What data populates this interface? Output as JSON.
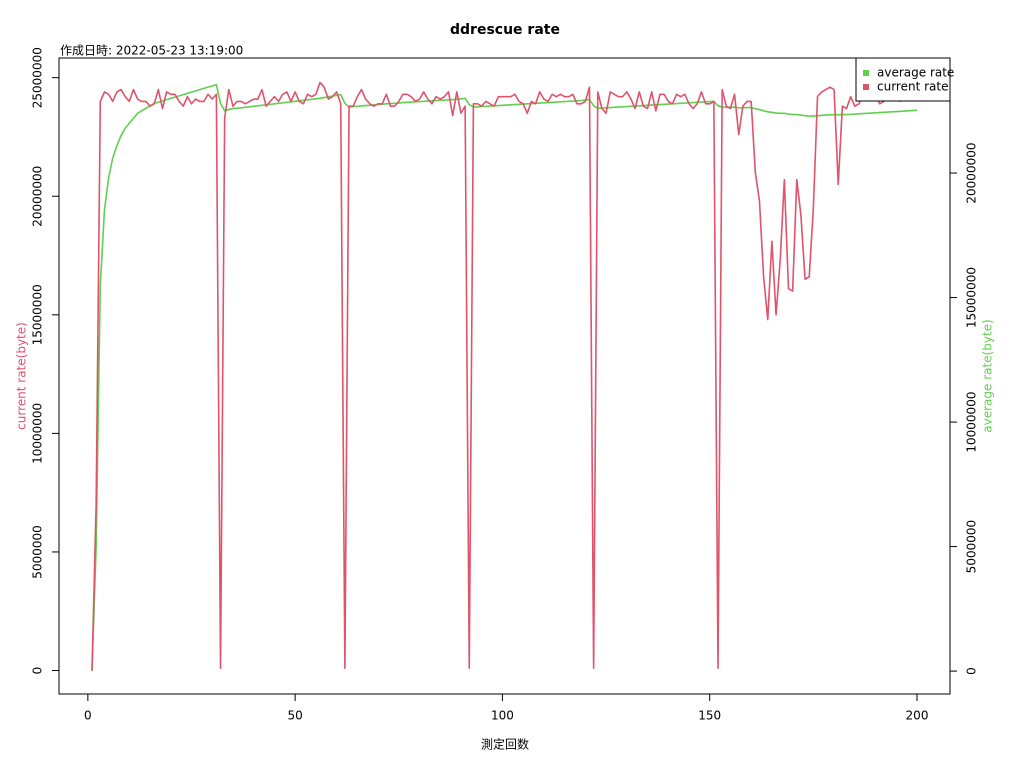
{
  "chart_data": {
    "type": "line",
    "title": "ddrescue rate",
    "subtitle": "作成日時: 2022-05-23 13:19:00",
    "x_label": "測定回数",
    "y_label": "current rate(byte)",
    "y2_label": "average rate(byte)",
    "legend": "topright",
    "xlim": [
      -6.96,
      207.96
    ],
    "xticks": [
      0,
      50,
      100,
      150,
      200
    ],
    "ylim": [
      -990000,
      25830000
    ],
    "yticks": [
      0,
      5000000,
      10000000,
      15000000,
      20000000,
      25000000
    ],
    "y2lim": [
      -920000,
      24620000
    ],
    "y2ticks": [
      0,
      5000000,
      10000000,
      15000000,
      20000000
    ],
    "x": [
      1,
      2,
      3,
      4,
      5,
      6,
      7,
      8,
      9,
      10,
      11,
      12,
      13,
      14,
      15,
      16,
      17,
      18,
      19,
      20,
      21,
      22,
      23,
      24,
      25,
      26,
      27,
      28,
      29,
      30,
      31,
      32,
      33,
      34,
      35,
      36,
      37,
      38,
      39,
      40,
      41,
      42,
      43,
      44,
      45,
      46,
      47,
      48,
      49,
      50,
      51,
      52,
      53,
      54,
      55,
      56,
      57,
      58,
      59,
      60,
      61,
      62,
      63,
      64,
      65,
      66,
      67,
      68,
      69,
      70,
      71,
      72,
      73,
      74,
      75,
      76,
      77,
      78,
      79,
      80,
      81,
      82,
      83,
      84,
      85,
      86,
      87,
      88,
      89,
      90,
      91,
      92,
      93,
      94,
      95,
      96,
      97,
      98,
      99,
      100,
      101,
      102,
      103,
      104,
      105,
      106,
      107,
      108,
      109,
      110,
      111,
      112,
      113,
      114,
      115,
      116,
      117,
      118,
      119,
      120,
      121,
      122,
      123,
      124,
      125,
      126,
      127,
      128,
      129,
      130,
      131,
      132,
      133,
      134,
      135,
      136,
      137,
      138,
      139,
      140,
      141,
      142,
      143,
      144,
      145,
      146,
      147,
      148,
      149,
      150,
      151,
      152,
      153,
      154,
      155,
      156,
      157,
      158,
      159,
      160,
      161,
      162,
      163,
      164,
      165,
      166,
      167,
      168,
      169,
      170,
      171,
      172,
      173,
      174,
      175,
      176,
      177,
      178,
      179,
      180,
      181,
      182,
      183,
      184,
      185,
      186,
      187,
      188,
      189,
      190,
      191,
      192,
      193,
      194,
      195,
      196,
      197,
      198,
      199,
      200
    ],
    "series": [
      {
        "name": "average rate",
        "color": "#61D04F",
        "axis": "y2",
        "values": [
          0,
          5000000,
          15500000,
          18500000,
          19800000,
          20600000,
          21100000,
          21500000,
          21800000,
          22000000,
          22200000,
          22400000,
          22500000,
          22600000,
          22700000,
          22800000,
          22850000,
          22900000,
          22950000,
          23000000,
          23050000,
          23100000,
          23150000,
          23200000,
          23250000,
          23300000,
          23350000,
          23400000,
          23450000,
          23500000,
          23550000,
          22800000,
          22500000,
          22550000,
          22600000,
          22600000,
          22620000,
          22640000,
          22660000,
          22680000,
          22700000,
          22720000,
          22740000,
          22760000,
          22780000,
          22800000,
          22820000,
          22840000,
          22860000,
          22880000,
          22900000,
          22920000,
          22940000,
          22960000,
          22980000,
          23000000,
          23030000,
          23060000,
          23090000,
          23120000,
          23150000,
          22800000,
          22650000,
          22670000,
          22680000,
          22700000,
          22710000,
          22720000,
          22740000,
          22750000,
          22760000,
          22780000,
          22790000,
          22800000,
          22810000,
          22830000,
          22840000,
          22850000,
          22860000,
          22870000,
          22880000,
          22890000,
          22900000,
          22910000,
          22920000,
          22930000,
          22940000,
          22950000,
          22960000,
          22980000,
          23000000,
          22750000,
          22650000,
          22660000,
          22670000,
          22680000,
          22690000,
          22700000,
          22710000,
          22720000,
          22730000,
          22740000,
          22750000,
          22760000,
          22770000,
          22780000,
          22790000,
          22800000,
          22810000,
          22820000,
          22830000,
          22840000,
          22850000,
          22860000,
          22870000,
          22880000,
          22890000,
          22900000,
          22910000,
          22930000,
          22950000,
          22700000,
          22600000,
          22610000,
          22620000,
          22630000,
          22640000,
          22650000,
          22660000,
          22670000,
          22680000,
          22690000,
          22700000,
          22710000,
          22720000,
          22730000,
          22740000,
          22750000,
          22760000,
          22770000,
          22780000,
          22790000,
          22800000,
          22810000,
          22820000,
          22830000,
          22840000,
          22850000,
          22860000,
          22870000,
          22880000,
          22700000,
          22650000,
          22640000,
          22640000,
          22650000,
          22620000,
          22620000,
          22630000,
          22630000,
          22580000,
          22550000,
          22500000,
          22460000,
          22440000,
          22410000,
          22400000,
          22400000,
          22370000,
          22350000,
          22350000,
          22330000,
          22300000,
          22290000,
          22290000,
          22300000,
          22320000,
          22330000,
          22340000,
          22350000,
          22340000,
          22350000,
          22350000,
          22360000,
          22370000,
          22380000,
          22390000,
          22400000,
          22410000,
          22420000,
          22430000,
          22440000,
          22450000,
          22460000,
          22470000,
          22480000,
          22490000,
          22500000,
          22510000,
          22520000
        ]
      },
      {
        "name": "current rate",
        "color": "#DF536B",
        "axis": "y",
        "values": [
          0,
          7000000,
          24000000,
          24400000,
          24300000,
          24000000,
          24400000,
          24500000,
          24200000,
          24000000,
          24500000,
          24100000,
          24000000,
          24000000,
          23800000,
          23900000,
          24500000,
          23700000,
          24400000,
          24300000,
          24300000,
          24000000,
          23800000,
          24200000,
          23900000,
          24100000,
          24000000,
          24000000,
          24300000,
          24100000,
          24300000,
          100000,
          23300000,
          24500000,
          23800000,
          24000000,
          24000000,
          23900000,
          24000000,
          24100000,
          24100000,
          24500000,
          23800000,
          24000000,
          24200000,
          24000000,
          24300000,
          24400000,
          24000000,
          24400000,
          24000000,
          23900000,
          24300000,
          24200000,
          24300000,
          24800000,
          24600000,
          24100000,
          24200000,
          24400000,
          23900000,
          100000,
          23800000,
          23800000,
          24200000,
          24500000,
          24100000,
          23900000,
          23800000,
          23900000,
          23900000,
          24300000,
          23800000,
          23800000,
          24000000,
          24300000,
          24300000,
          24200000,
          24000000,
          24100000,
          24400000,
          24100000,
          23900000,
          24200000,
          24100000,
          24200000,
          24400000,
          23400000,
          24400000,
          23500000,
          23800000,
          100000,
          23900000,
          23900000,
          23800000,
          24000000,
          23900000,
          23800000,
          24200000,
          24200000,
          24200000,
          24200000,
          24300000,
          24000000,
          23900000,
          23500000,
          24000000,
          23900000,
          24400000,
          24100000,
          24000000,
          24300000,
          24200000,
          24300000,
          24200000,
          24200000,
          24300000,
          23900000,
          23900000,
          24000000,
          24600000,
          100000,
          24400000,
          23700000,
          23500000,
          24400000,
          24300000,
          24200000,
          24200000,
          24400000,
          24100000,
          23700000,
          24400000,
          23800000,
          23700000,
          24400000,
          23600000,
          24300000,
          24300000,
          24000000,
          23900000,
          24300000,
          24200000,
          24300000,
          23900000,
          23700000,
          23900000,
          24400000,
          23900000,
          23900000,
          24000000,
          100000,
          24500000,
          23800000,
          23700000,
          24300000,
          22600000,
          23800000,
          24000000,
          24000000,
          21000000,
          19800000,
          16600000,
          14800000,
          18100000,
          15000000,
          17300000,
          20700000,
          16100000,
          16000000,
          20700000,
          19200000,
          16500000,
          16600000,
          19500000,
          24200000,
          24400000,
          24500000,
          24600000,
          24500000,
          20500000,
          23800000,
          23700000,
          24200000,
          23800000,
          23900000,
          24300000,
          24100000,
          24200000,
          24300000,
          23900000,
          24000000,
          24200000,
          24100000,
          24200000,
          24000000,
          24300000,
          24100000,
          24200000,
          24000000
        ]
      }
    ]
  }
}
